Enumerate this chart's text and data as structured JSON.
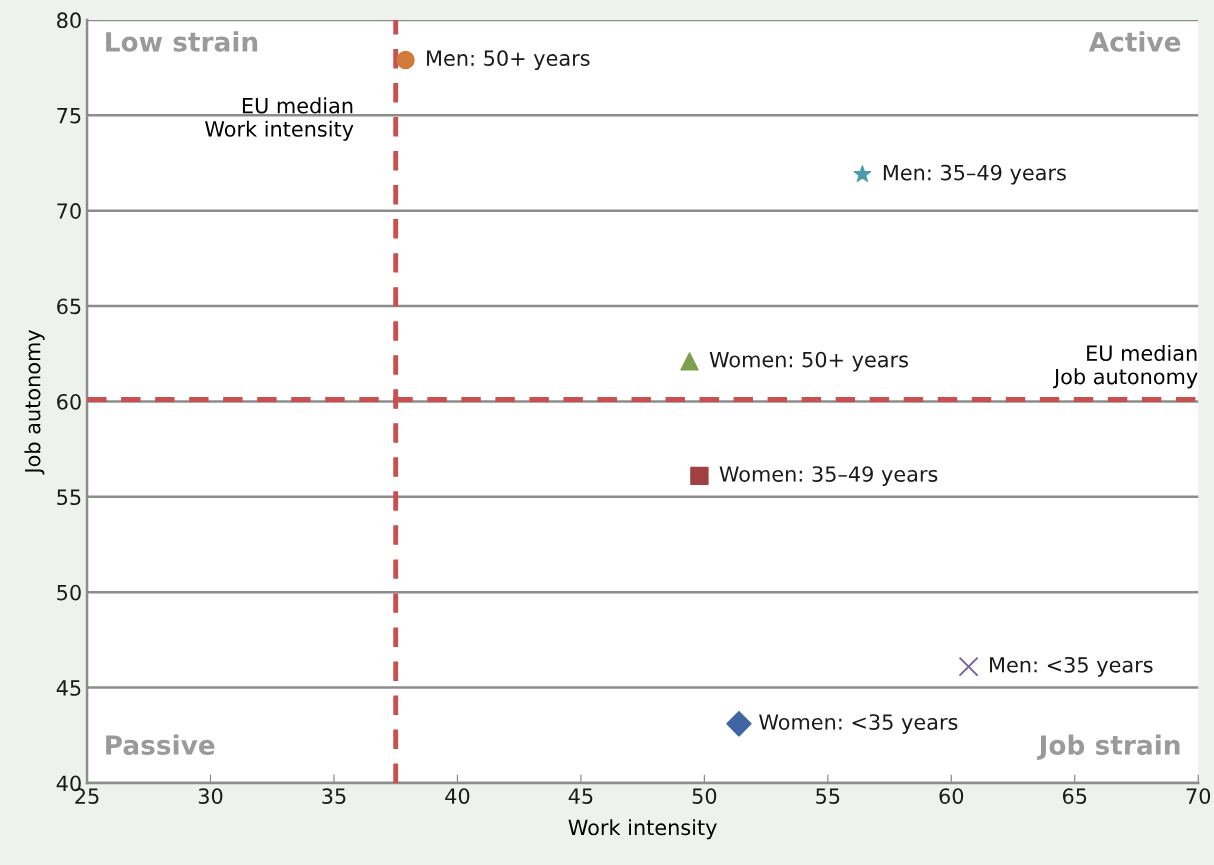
{
  "chart_data": {
    "type": "scatter",
    "xlabel": "Work intensity",
    "ylabel": "Job autonomy",
    "xlim": [
      25,
      70
    ],
    "xticks": [
      25,
      30,
      35,
      40,
      45,
      50,
      55,
      60,
      65,
      70
    ],
    "ylim": [
      40,
      80
    ],
    "yticks": [
      40,
      45,
      50,
      55,
      60,
      65,
      70,
      75,
      80
    ],
    "grid": "y",
    "legend": false,
    "series": [
      {
        "name": "Men: 50+ years",
        "color": "#d07b3a",
        "marker": "circle",
        "x": [
          37.9
        ],
        "values": [
          77.9
        ]
      },
      {
        "name": "Men: 35–49 years",
        "color": "#4a9bb0",
        "marker": "star",
        "x": [
          56.4
        ],
        "values": [
          71.9
        ]
      },
      {
        "name": "Women: 50+ years",
        "color": "#7f9f50",
        "marker": "triangle",
        "x": [
          49.4
        ],
        "values": [
          62.1
        ]
      },
      {
        "name": "Women: 35–49 years",
        "color": "#a04040",
        "marker": "square",
        "x": [
          49.8
        ],
        "values": [
          56.1
        ]
      },
      {
        "name": "Men: <35 years",
        "color": "#6e5f9e",
        "marker": "cross",
        "x": [
          60.7
        ],
        "values": [
          46.1
        ]
      },
      {
        "name": "Women: <35 years",
        "color": "#3f65a5",
        "marker": "diamond",
        "x": [
          51.4
        ],
        "values": [
          43.1
        ]
      }
    ],
    "ref_lines": [
      {
        "axis": "x",
        "value": 37.5,
        "label": "EU median\nWork intensity",
        "color": "#c8504f",
        "line_style": "dashed"
      },
      {
        "axis": "y",
        "value": 60.1,
        "label": "EU median\nJob autonomy",
        "color": "#c8504f",
        "line_style": "dashed"
      }
    ],
    "annotations": [
      "Low strain",
      "Active",
      "Passive",
      "Job strain"
    ]
  }
}
